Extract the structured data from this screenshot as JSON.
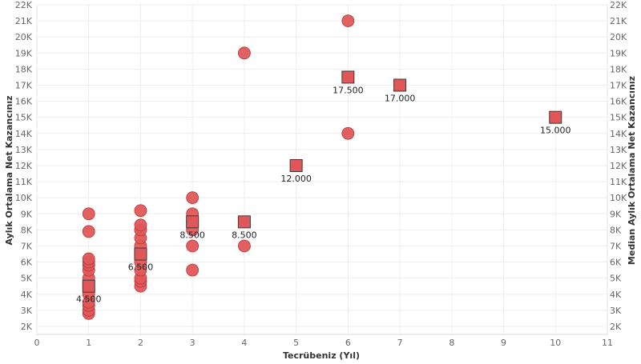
{
  "chart_data": {
    "type": "scatter",
    "colors": {
      "marker": "#e15759",
      "marker_stroke": "#b53639",
      "square_stroke": "#3a3a3a",
      "grid": "#eeeeee"
    },
    "xlabel": "Tecrübeniz (Yıl)",
    "ylabel_left": "Aylık Ortalama Net Kazancınız",
    "ylabel_right": "Median Aylık Ortalama Net Kazancınız",
    "xlim": [
      0,
      11
    ],
    "ylim": [
      1500,
      22000
    ],
    "x_ticks": [
      "0",
      "1",
      "2",
      "3",
      "4",
      "5",
      "6",
      "7",
      "8",
      "9",
      "10",
      "11"
    ],
    "y_ticks": [
      {
        "v": 2000,
        "t": "2K"
      },
      {
        "v": 3000,
        "t": "3K"
      },
      {
        "v": 4000,
        "t": "4K"
      },
      {
        "v": 5000,
        "t": "5K"
      },
      {
        "v": 6000,
        "t": "6K"
      },
      {
        "v": 7000,
        "t": "7K"
      },
      {
        "v": 8000,
        "t": "8K"
      },
      {
        "v": 9000,
        "t": "9K"
      },
      {
        "v": 10000,
        "t": "10K"
      },
      {
        "v": 11000,
        "t": "11K"
      },
      {
        "v": 12000,
        "t": "12K"
      },
      {
        "v": 13000,
        "t": "13K"
      },
      {
        "v": 14000,
        "t": "14K"
      },
      {
        "v": 15000,
        "t": "15K"
      },
      {
        "v": 16000,
        "t": "16K"
      },
      {
        "v": 17000,
        "t": "17K"
      },
      {
        "v": 18000,
        "t": "18K"
      },
      {
        "v": 19000,
        "t": "19K"
      },
      {
        "v": 20000,
        "t": "20K"
      },
      {
        "v": 21000,
        "t": "21K"
      },
      {
        "v": 22000,
        "t": "22K"
      }
    ],
    "series": [
      {
        "name": "Aylık Ortalama Net Kazancınız",
        "marker": "circle",
        "points": [
          [
            1,
            2800
          ],
          [
            1,
            3000
          ],
          [
            1,
            3300
          ],
          [
            1,
            3500
          ],
          [
            1,
            4000
          ],
          [
            1,
            4500
          ],
          [
            1,
            5000
          ],
          [
            1,
            5500
          ],
          [
            1,
            5800
          ],
          [
            1,
            6000
          ],
          [
            1,
            6200
          ],
          [
            1,
            7900
          ],
          [
            1,
            9000
          ],
          [
            2,
            4500
          ],
          [
            2,
            4800
          ],
          [
            2,
            5000
          ],
          [
            2,
            5500
          ],
          [
            2,
            6000
          ],
          [
            2,
            6500
          ],
          [
            2,
            7000
          ],
          [
            2,
            7500
          ],
          [
            2,
            8000
          ],
          [
            2,
            8300
          ],
          [
            2,
            9200
          ],
          [
            3,
            5500
          ],
          [
            3,
            7000
          ],
          [
            3,
            8000
          ],
          [
            3,
            8500
          ],
          [
            3,
            9000
          ],
          [
            3,
            10000
          ],
          [
            4,
            7000
          ],
          [
            4,
            19000
          ],
          [
            6,
            14000
          ],
          [
            6,
            21000
          ]
        ]
      },
      {
        "name": "Median Aylık Ortalama Net Kazancınız",
        "marker": "square",
        "points": [
          {
            "x": 1,
            "y": 4500,
            "label": "4.500"
          },
          {
            "x": 2,
            "y": 6500,
            "label": "6.500"
          },
          {
            "x": 3,
            "y": 8500,
            "label": "8.500"
          },
          {
            "x": 4,
            "y": 8500,
            "label": "8.500"
          },
          {
            "x": 5,
            "y": 12000,
            "label": "12.000"
          },
          {
            "x": 6,
            "y": 17500,
            "label": "17.500"
          },
          {
            "x": 7,
            "y": 17000,
            "label": "17.000"
          },
          {
            "x": 10,
            "y": 15000,
            "label": "15.000"
          }
        ]
      }
    ]
  }
}
